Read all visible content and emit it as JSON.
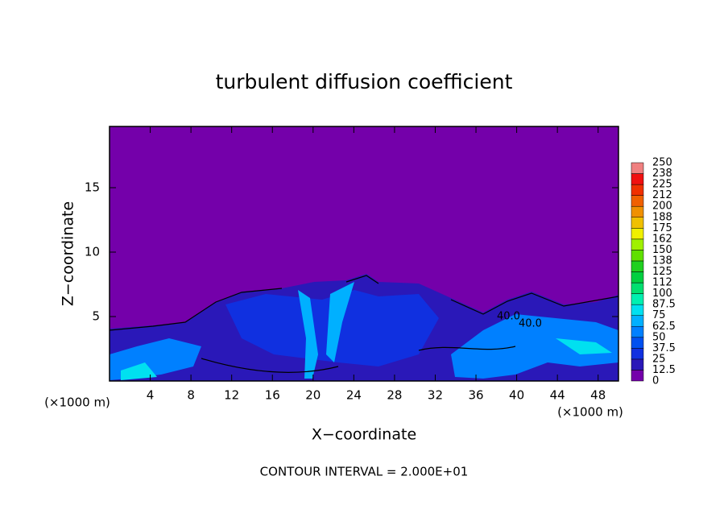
{
  "chart_data": {
    "type": "contour",
    "title": "turbulent diffusion coefficient",
    "x_label": "X−coordinate",
    "y_label": "Z−coordinate",
    "y_unit_label": "(×1000 m)",
    "x_unit_label": "(×1000 m)",
    "footnote": "CONTOUR INTERVAL = 2.000E+01",
    "contour_labels": [
      "40.0",
      "40.0"
    ],
    "xlim": [
      0,
      50
    ],
    "xticks": [
      4,
      8,
      12,
      16,
      20,
      24,
      28,
      32,
      36,
      40,
      44,
      48
    ],
    "ylim": [
      0,
      19.75
    ],
    "yticks": [
      5,
      10,
      15
    ],
    "colorbar": {
      "levels": [
        0,
        12.5,
        25,
        37.5,
        50,
        62.5,
        75,
        87.5,
        100,
        112,
        125,
        138,
        150,
        162,
        175,
        188,
        200,
        212,
        225,
        238,
        250
      ],
      "colors": [
        "#7400aa",
        "#2a18b8",
        "#1030e0",
        "#0050f0",
        "#0080ff",
        "#00b0ff",
        "#00e0f0",
        "#00f0b0",
        "#00e070",
        "#00d040",
        "#20d020",
        "#60e000",
        "#a0f000",
        "#f0f000",
        "#f0c000",
        "#f09000",
        "#f06000",
        "#f03000",
        "#f01010",
        "#f08080"
      ]
    }
  }
}
